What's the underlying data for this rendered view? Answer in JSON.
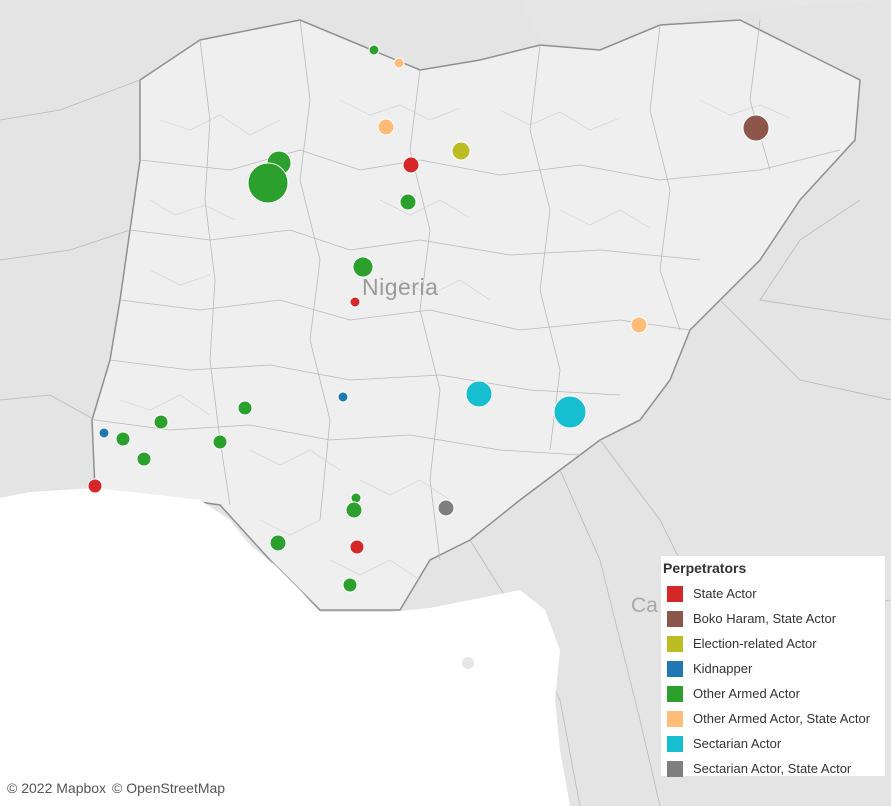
{
  "map": {
    "country_label": "Nigeria",
    "edge_label": "Ca"
  },
  "legend": {
    "title": "Perpetrators",
    "items": [
      {
        "label": "State Actor",
        "color": "#d62728"
      },
      {
        "label": "Boko Haram, State Actor",
        "color": "#8c564b"
      },
      {
        "label": "Election-related Actor",
        "color": "#bcbd22"
      },
      {
        "label": "Kidnapper",
        "color": "#1f77b4"
      },
      {
        "label": "Other Armed Actor",
        "color": "#2ca02c"
      },
      {
        "label": "Other Armed Actor, State Actor",
        "color": "#ffbb78"
      },
      {
        "label": "Sectarian Actor",
        "color": "#17becf"
      },
      {
        "label": "Sectarian Actor, State Actor",
        "color": "#7f7f7f"
      }
    ]
  },
  "attribution": {
    "mapbox": "© 2022 Mapbox",
    "osm": "© OpenStreetMap"
  }
}
